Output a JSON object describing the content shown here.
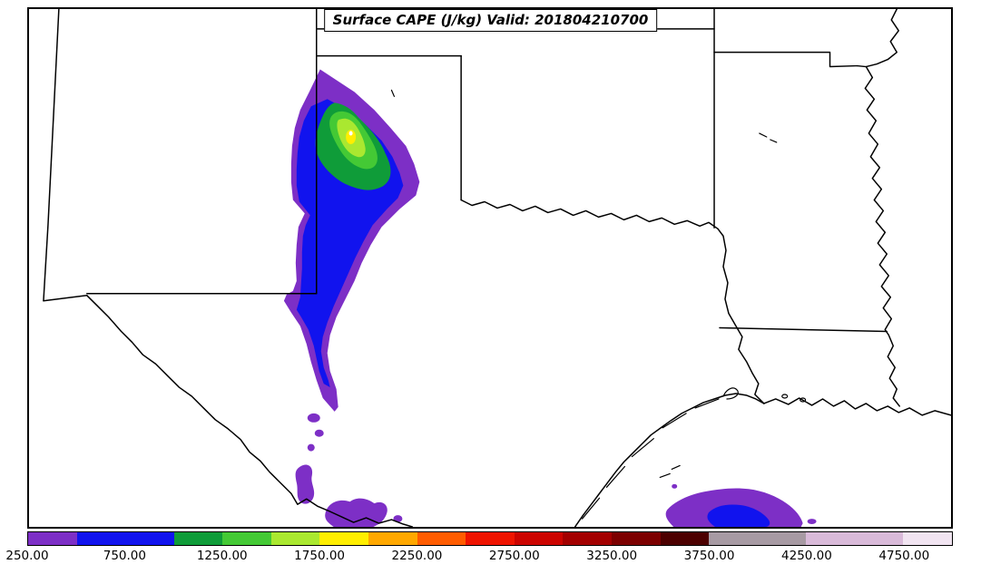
{
  "figure": {
    "title": "Surface CAPE (J/kg) Valid: 201804210700"
  },
  "colors": {
    "purple": "#7d2fc6",
    "blue": "#1113ee",
    "green": "#0f9c39",
    "light_green": "#44c935",
    "green_yellow": "#aae830",
    "yellow": "#ffee00",
    "white_core": "#ffffff",
    "border": "#000000"
  },
  "chart_data": {
    "type": "heatmap",
    "subtype": "filled-contour-weather-map",
    "title": "Surface CAPE (J/kg) Valid: 201804210700",
    "variable": "Surface CAPE",
    "units": "J/kg",
    "valid_time": "201804210700",
    "region": "South-central United States: New Mexico, Texas, Oklahoma, Kansas edge, Arkansas, Louisiana, western Gulf of Mexico",
    "legend_position": "bottom horizontal colorbar",
    "grid": false,
    "colorbar": {
      "orientation": "horizontal",
      "value_min": 250,
      "value_max": 5000,
      "tick_values": [
        250,
        750,
        1250,
        1750,
        2250,
        2750,
        3250,
        3750,
        4250,
        4750
      ],
      "tick_labels": [
        "250.00",
        "750.00",
        "1250.00",
        "1750.00",
        "2250.00",
        "2750.00",
        "3250.00",
        "3750.00",
        "4250.00",
        "4750.00"
      ],
      "segments": [
        {
          "from": 250,
          "to": 500,
          "color": "#7d2fc6"
        },
        {
          "from": 500,
          "to": 1000,
          "color": "#1113ee"
        },
        {
          "from": 1000,
          "to": 1250,
          "color": "#0f9c39"
        },
        {
          "from": 1250,
          "to": 1500,
          "color": "#44c935"
        },
        {
          "from": 1500,
          "to": 1750,
          "color": "#aae830"
        },
        {
          "from": 1750,
          "to": 2000,
          "color": "#ffee00"
        },
        {
          "from": 2000,
          "to": 2250,
          "color": "#ffa800"
        },
        {
          "from": 2250,
          "to": 2500,
          "color": "#ff5c00"
        },
        {
          "from": 2500,
          "to": 2750,
          "color": "#ef1400"
        },
        {
          "from": 2750,
          "to": 3000,
          "color": "#cc0400"
        },
        {
          "from": 3000,
          "to": 3250,
          "color": "#a30000"
        },
        {
          "from": 3250,
          "to": 3500,
          "color": "#7c0000"
        },
        {
          "from": 3500,
          "to": 3750,
          "color": "#4c0000"
        },
        {
          "from": 3750,
          "to": 4250,
          "color": "#a79aa3"
        },
        {
          "from": 4250,
          "to": 4750,
          "color": "#d9bad9"
        },
        {
          "from": 4750,
          "to": 5000,
          "color": "#f1e4f1"
        }
      ]
    },
    "features": [
      {
        "name": "primary-cape-corridor",
        "location": "eastern New Mexico into the western Texas Panhandle, elongated north-south",
        "levels": "250-2000 J/kg; core maximum ~1750-2000 J/kg near the TX/NM border"
      },
      {
        "name": "rio-grande-patches",
        "location": "along the Rio Grande and Big Bend of the Texas-Mexico border",
        "levels": "250-500 J/kg"
      },
      {
        "name": "gulf-patch",
        "location": "western Gulf of Mexico off the south Texas / Louisiana coast",
        "levels": "250-1000 J/kg"
      }
    ],
    "map_features": [
      "state-borders",
      "rio-grande",
      "red-river",
      "mississippi-river",
      "gulf-coastline",
      "barrier-islands"
    ]
  }
}
